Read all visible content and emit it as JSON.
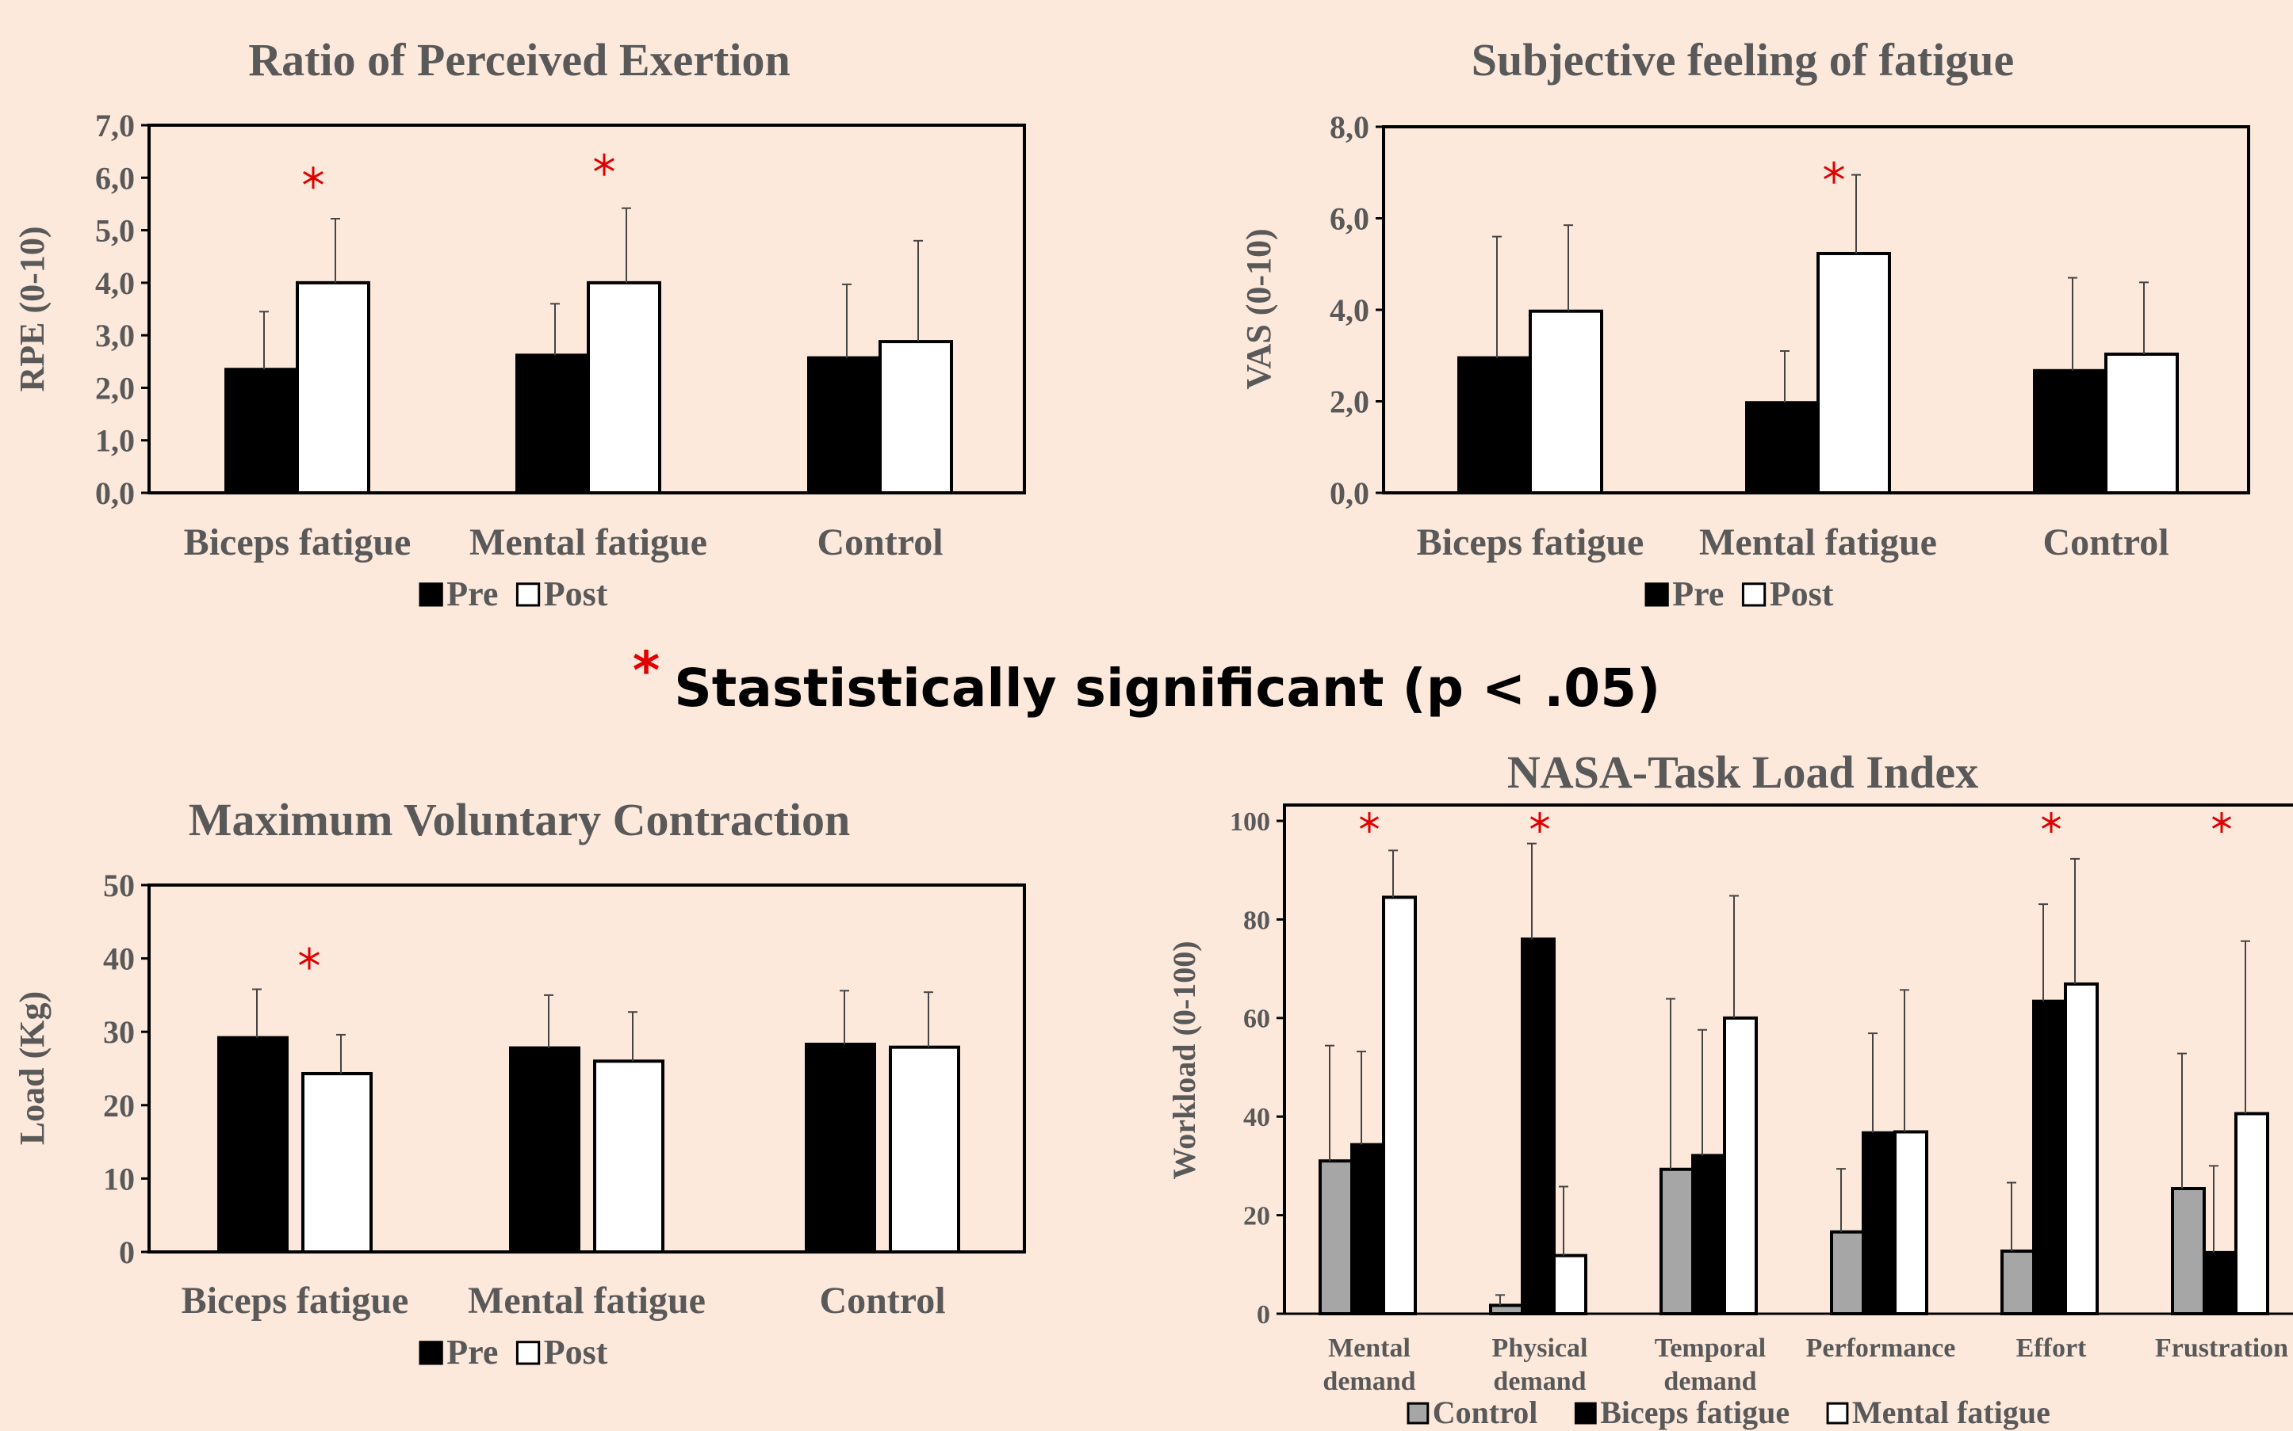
{
  "note": {
    "star": "*",
    "text": "Stastistically significant (p < .05)"
  },
  "chart_data": [
    {
      "type": "bar",
      "title": "Ratio of Perceived Exertion",
      "ylabel": "RPE (0-10)",
      "xlabel": "",
      "ylim": [
        0,
        7
      ],
      "ytick_labels": [
        "0,0",
        "1,0",
        "2,0",
        "3,0",
        "4,0",
        "5,0",
        "6,0",
        "7,0"
      ],
      "categories": [
        "Biceps fatigue",
        "Mental fatigue",
        "Control"
      ],
      "series": [
        {
          "name": "Pre",
          "color": "#000000",
          "values": [
            2.35,
            2.62,
            2.57
          ],
          "errors": [
            1.1,
            0.98,
            1.4
          ]
        },
        {
          "name": "Post",
          "color": "#ffffff",
          "values": [
            4.0,
            4.0,
            2.88
          ],
          "errors": [
            1.22,
            1.42,
            1.92
          ]
        }
      ],
      "significance": [
        "Biceps fatigue",
        "Mental fatigue"
      ],
      "significance_y": [
        6.0,
        6.25
      ],
      "legend": "bottom"
    },
    {
      "type": "bar",
      "title": "Subjective feeling of fatigue",
      "ylabel": "VAS (0-10)",
      "xlabel": "",
      "ylim": [
        0,
        8
      ],
      "ytick_labels": [
        "0,0",
        "2,0",
        "4,0",
        "6,0",
        "8,0"
      ],
      "categories": [
        "Biceps fatigue",
        "Mental fatigue",
        "Control"
      ],
      "series": [
        {
          "name": "Pre",
          "color": "#000000",
          "values": [
            2.95,
            1.97,
            2.67
          ],
          "errors": [
            2.65,
            1.13,
            2.03
          ]
        },
        {
          "name": "Post",
          "color": "#ffffff",
          "values": [
            3.97,
            5.23,
            3.03
          ],
          "errors": [
            1.88,
            1.72,
            1.57
          ]
        }
      ],
      "significance": [
        "Mental fatigue"
      ],
      "significance_y": [
        7.0
      ],
      "legend": "bottom"
    },
    {
      "type": "bar",
      "title": "Maximum Voluntary Contraction",
      "ylabel": "Load  (Kg)",
      "xlabel": "",
      "ylim": [
        0,
        50
      ],
      "ytick_labels": [
        "0",
        "10",
        "20",
        "30",
        "40",
        "50"
      ],
      "categories": [
        "Biceps fatigue",
        "Mental fatigue",
        "Control"
      ],
      "series": [
        {
          "name": "Pre",
          "color": "#000000",
          "values": [
            29.2,
            27.8,
            28.3
          ],
          "errors": [
            6.6,
            7.2,
            7.3
          ]
        },
        {
          "name": "Post",
          "color": "#ffffff",
          "values": [
            24.3,
            26.0,
            27.9
          ],
          "errors": [
            5.3,
            6.7,
            7.5
          ]
        }
      ],
      "significance": [
        "Biceps fatigue"
      ],
      "significance_y": [
        40
      ],
      "legend": "bottom"
    },
    {
      "type": "bar",
      "title": "NASA-Task Load Index",
      "ylabel": "Workload (0-100)",
      "xlabel": "",
      "ylim": [
        0,
        100
      ],
      "ytick_labels": [
        "0",
        "20",
        "40",
        "60",
        "80",
        "100"
      ],
      "categories": [
        "Mental demand",
        "Physical demand",
        "Temporal demand",
        "Performance",
        "Effort",
        "Frustration"
      ],
      "series": [
        {
          "name": "Control",
          "color": "#a6a6a6",
          "values": [
            31.0,
            1.7,
            29.3,
            16.6,
            12.7,
            25.4
          ],
          "errors": [
            23.4,
            2.1,
            34.6,
            12.8,
            13.9,
            27.4
          ]
        },
        {
          "name": "Biceps fatigue",
          "color": "#000000",
          "values": [
            34.3,
            76.0,
            32.1,
            36.7,
            63.4,
            12.4
          ],
          "errors": [
            18.9,
            19.4,
            25.5,
            20.2,
            19.7,
            17.6
          ]
        },
        {
          "name": "Mental fatigue",
          "color": "#ffffff",
          "values": [
            84.5,
            11.8,
            60.0,
            36.9,
            66.9,
            40.6
          ],
          "errors": [
            9.5,
            14.0,
            24.8,
            28.8,
            25.4,
            35.0
          ]
        }
      ],
      "significance": [
        "Mental demand",
        "Physical demand",
        "Effort",
        "Frustration"
      ],
      "significance_y": [
        100,
        100,
        100,
        100
      ],
      "legend": "bottom"
    }
  ]
}
